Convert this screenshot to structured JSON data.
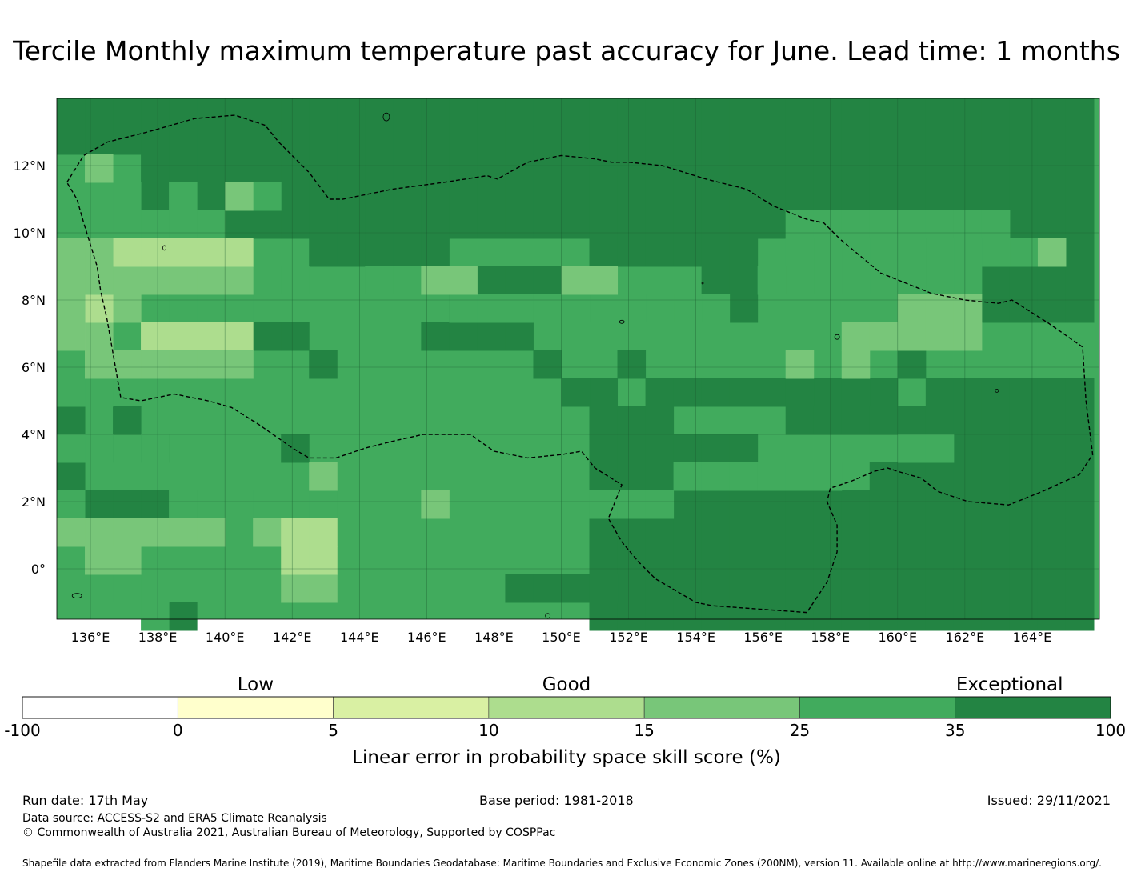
{
  "title": "Tercile Monthly maximum temperature past accuracy for June. Lead time: 1 months",
  "map": {
    "lon_range": [
      135,
      166
    ],
    "lat_range": [
      -1.5,
      14
    ],
    "lon_ticks": [
      {
        "value": 136,
        "label": "136°E"
      },
      {
        "value": 138,
        "label": "138°E"
      },
      {
        "value": 140,
        "label": "140°E"
      },
      {
        "value": 142,
        "label": "142°E"
      },
      {
        "value": 144,
        "label": "144°E"
      },
      {
        "value": 146,
        "label": "146°E"
      },
      {
        "value": 148,
        "label": "148°E"
      },
      {
        "value": 150,
        "label": "150°E"
      },
      {
        "value": 152,
        "label": "152°E"
      },
      {
        "value": 154,
        "label": "154°E"
      },
      {
        "value": 156,
        "label": "156°E"
      },
      {
        "value": 158,
        "label": "158°E"
      },
      {
        "value": 160,
        "label": "160°E"
      },
      {
        "value": 162,
        "label": "162°E"
      },
      {
        "value": 164,
        "label": "164°E"
      }
    ],
    "lat_ticks": [
      {
        "value": 12,
        "label": "12°N"
      },
      {
        "value": 10,
        "label": "10°N"
      },
      {
        "value": 8,
        "label": "8°N"
      },
      {
        "value": 6,
        "label": "6°N"
      },
      {
        "value": 4,
        "label": "4°N"
      },
      {
        "value": 2,
        "label": "2°N"
      },
      {
        "value": 0,
        "label": "0°"
      }
    ],
    "grid": true,
    "eez_boundary": "Federated States of Micronesia EEZ (dashed)",
    "dominant_category": "25-35"
  },
  "colorbar": {
    "title": "Linear error in probability space skill score (%)",
    "categories": [
      "Low",
      "Good",
      "Exceptional"
    ],
    "bounds": [
      "-100",
      "0",
      "5",
      "10",
      "15",
      "25",
      "35",
      "100"
    ],
    "colors": [
      "#ffffff",
      "#ffffcc",
      "#d9f0a3",
      "#addd8e",
      "#78c679",
      "#41ab5d",
      "#238443"
    ]
  },
  "footer": {
    "run_date": "Run date: 17th May",
    "base_period": "Base period: 1981-2018",
    "issued": "Issued: 29/11/2021",
    "data_source": "Data source: ACCESS-S2 and ERA5 Climate Reanalysis",
    "copyright": "© Commonwealth of Australia 2021, Australian Bureau of Meteorology, Supported by COSPPac",
    "shapefile": "Shapefile data extracted from Flanders Marine Institute (2019), Maritime Boundaries Geodatabase: Maritime Boundaries and Exclusive Economic Zones (200NM), version 11. Available online at http://www.marineregions.org/."
  }
}
